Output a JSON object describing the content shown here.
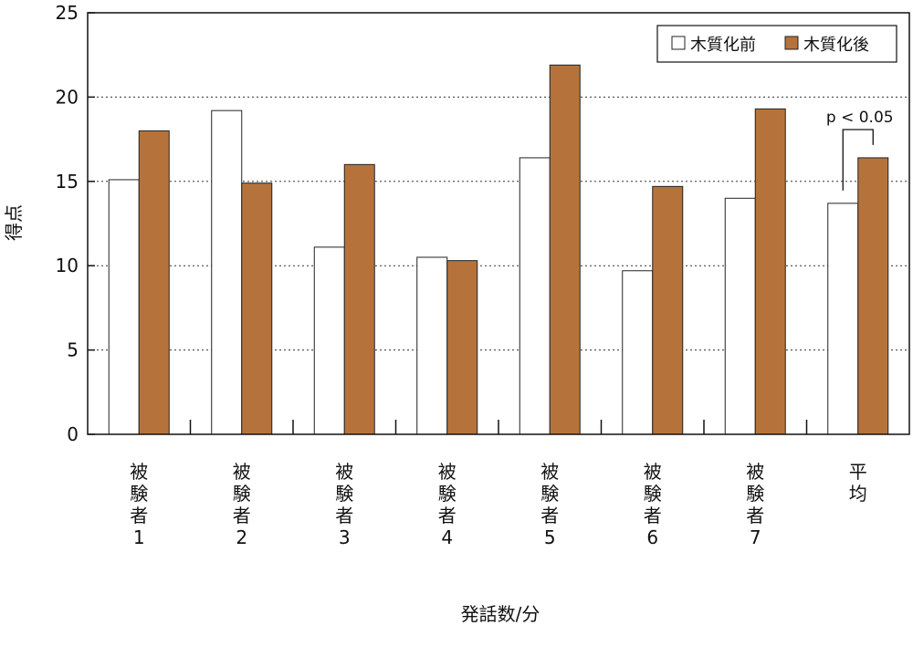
{
  "chart_data": {
    "type": "bar",
    "title": "",
    "xlabel": "発話数/分",
    "ylabel": "得点",
    "ylim": [
      0,
      25
    ],
    "yticks": [
      0,
      5,
      10,
      15,
      20,
      25
    ],
    "grid": "horizontal-dotted",
    "legend_position": "top-right",
    "categories": [
      [
        "被",
        "験",
        "者",
        "1"
      ],
      [
        "被",
        "験",
        "者",
        "2"
      ],
      [
        "被",
        "験",
        "者",
        "3"
      ],
      [
        "被",
        "験",
        "者",
        "4"
      ],
      [
        "被",
        "験",
        "者",
        "5"
      ],
      [
        "被",
        "験",
        "者",
        "6"
      ],
      [
        "被",
        "験",
        "者",
        "7"
      ],
      [
        "平",
        "均"
      ]
    ],
    "series": [
      {
        "name": "木質化前",
        "color": "#ffffff",
        "values": [
          15.1,
          19.2,
          11.1,
          10.5,
          16.4,
          9.7,
          14.0,
          13.7
        ]
      },
      {
        "name": "木質化後",
        "color": "#b5733b",
        "values": [
          18.0,
          14.9,
          16.0,
          10.3,
          21.9,
          14.7,
          19.3,
          16.4
        ]
      }
    ],
    "annotation": {
      "text": "p < 0.05",
      "category_index": 7
    }
  }
}
